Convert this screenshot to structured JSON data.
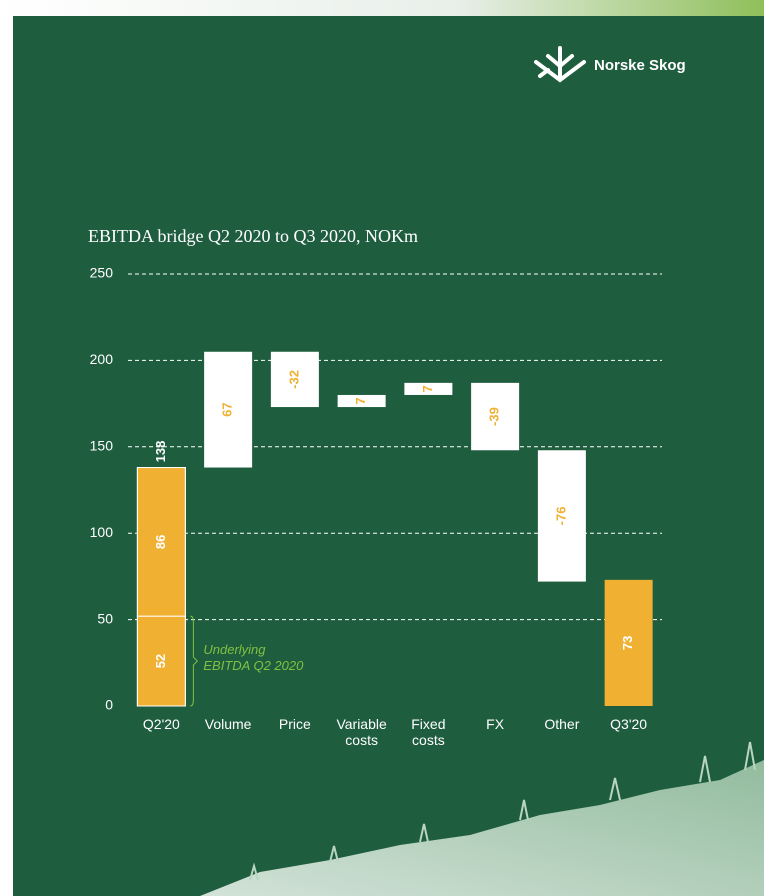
{
  "logo": "Norske Skog",
  "chart_data": {
    "type": "waterfall",
    "title": "EBITDA bridge Q2 2020 to Q3 2020, NOKm",
    "categories": [
      "Q2'20",
      "Volume",
      "Price",
      "Variable costs",
      "Fixed costs",
      "FX",
      "Other",
      "Q3'20"
    ],
    "values": [
      138,
      67,
      -32,
      7,
      7,
      -39,
      -76,
      73
    ],
    "segments": [
      52,
      86
    ],
    "annotation": [
      "Underlying",
      "EBITDA Q2 2020"
    ],
    "ylim": [
      0,
      250
    ],
    "yticks": [
      0,
      50,
      100,
      150,
      200,
      250
    ],
    "grid": true,
    "color": "#f0b132",
    "delta_color": "#ffffff"
  }
}
